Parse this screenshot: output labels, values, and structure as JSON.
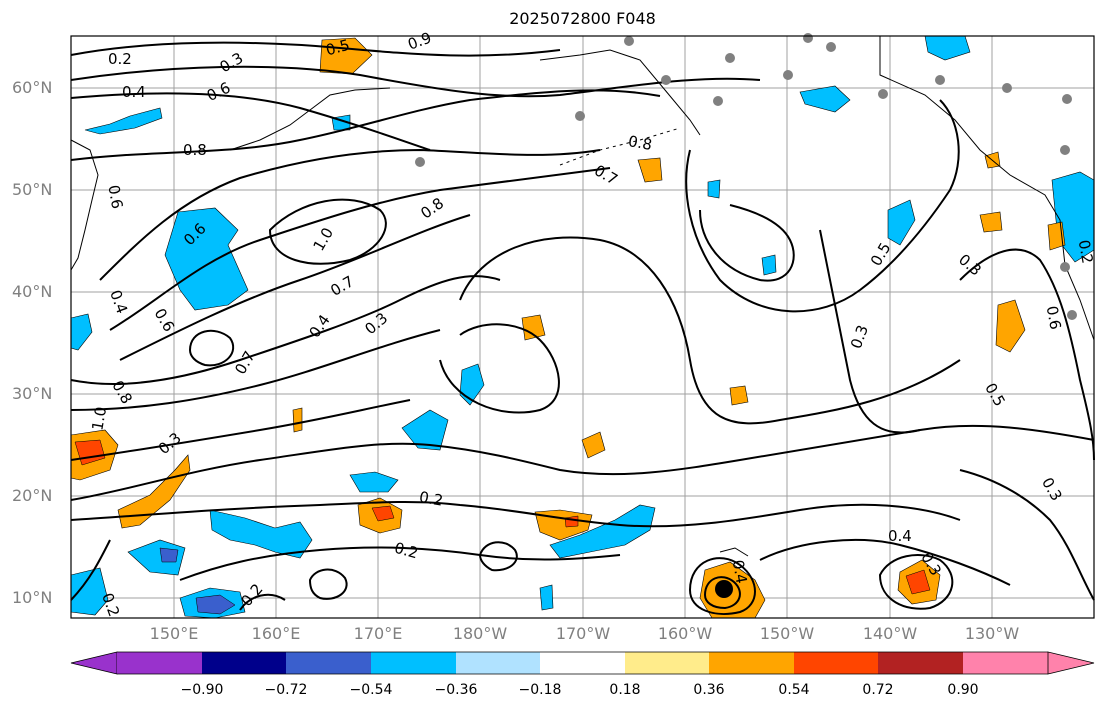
{
  "title": "2025072800 F048",
  "map": {
    "lat_labels": [
      "60°N",
      "50°N",
      "40°N",
      "30°N",
      "20°N",
      "10°N"
    ],
    "lon_labels": [
      "150°E",
      "160°E",
      "170°E",
      "180°W",
      "170°W",
      "160°W",
      "150°W",
      "140°W",
      "130°W"
    ],
    "contour_labels": [
      "0.2",
      "0.3",
      "0.4",
      "0.6",
      "0.5",
      "0.8",
      "0.6",
      "0.9",
      "0.8",
      "1.0",
      "0.6",
      "0.4",
      "0.6",
      "0.4",
      "0.7",
      "0.3",
      "0.7",
      "0.8",
      "0.8",
      "0.7",
      "0.5",
      "0.3",
      "0.3",
      "0.5",
      "0.6",
      "1.0",
      "0.3",
      "0.2",
      "0.2",
      "0.2",
      "0.4",
      "0.3",
      "0.3",
      "0.4",
      "0.2",
      "0.2"
    ]
  },
  "colorbar": {
    "ticks": [
      "−0.90",
      "−0.72",
      "−0.54",
      "−0.36",
      "−0.18",
      "0.18",
      "0.36",
      "0.54",
      "0.72",
      "0.90"
    ],
    "colors": [
      "#9932cc",
      "#00008b",
      "#3a5fcd",
      "#00bfff",
      "#b0e2ff",
      "#ffffff",
      "#ffec8b",
      "#ffa500",
      "#ff4500",
      "#b22222",
      "#ff82ab"
    ]
  }
}
